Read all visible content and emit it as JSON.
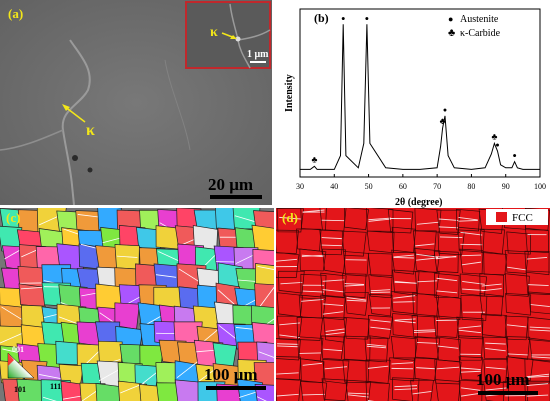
{
  "panels": {
    "a": {
      "label": "(a)",
      "arrow_label": "κ",
      "inset_arrow_label": "κ",
      "inset_scale": "1 μm",
      "scale": "20 μm"
    },
    "b": {
      "label": "(b)",
      "legend": [
        "Austenite",
        "κ-Carbide"
      ],
      "legend_symbols": [
        "●",
        "♣"
      ]
    },
    "c": {
      "label": "(c)",
      "scale": "100 μm",
      "ipf": {
        "top": "001",
        "left": "101",
        "right": "111"
      }
    },
    "d": {
      "label": "(d)",
      "legend_label": "FCC",
      "scale": "100 μm"
    }
  },
  "colors": {
    "sem_background": "#6f6f6f",
    "label_yellow": "#f2e61a",
    "inset_border": "#c0282c",
    "fcc_red": "#e3161a"
  },
  "chart_data": {
    "type": "line",
    "title": "",
    "xlabel": "2θ (degree)",
    "ylabel": "Intensity",
    "xlim": [
      30,
      100
    ],
    "xticks": [
      30,
      40,
      50,
      60,
      70,
      80,
      90,
      100
    ],
    "series": [
      {
        "name": "",
        "x": [
          30,
          33,
          34.2,
          35,
          40,
          41.8,
          42.6,
          43.4,
          47,
          48.6,
          49.5,
          50.4,
          55,
          60,
          65,
          70,
          71,
          71.6,
          72.3,
          73.2,
          75,
          80,
          84,
          85.8,
          86.7,
          87.6,
          88.5,
          90,
          91.8,
          92.6,
          93.4,
          95,
          100
        ],
        "y": [
          5,
          5,
          7,
          5,
          5,
          14,
          100,
          14,
          6,
          22,
          100,
          22,
          6,
          5,
          5,
          6,
          20,
          32,
          40,
          14,
          6,
          5,
          6,
          15,
          22,
          17,
          8,
          6,
          6,
          10,
          6,
          5,
          5
        ]
      }
    ],
    "markers": [
      {
        "symbol": "●",
        "phase": "Austenite",
        "x": 42.6,
        "y": 100
      },
      {
        "symbol": "●",
        "phase": "Austenite",
        "x": 49.5,
        "y": 100
      },
      {
        "symbol": "●",
        "phase": "Austenite",
        "x": 72.3,
        "y": 40
      },
      {
        "symbol": "●",
        "phase": "Austenite",
        "x": 87.6,
        "y": 17
      },
      {
        "symbol": "●",
        "phase": "Austenite",
        "x": 92.6,
        "y": 10
      },
      {
        "symbol": "♣",
        "phase": "κ-Carbide",
        "x": 34.2,
        "y": 7
      },
      {
        "symbol": "♣",
        "phase": "κ-Carbide",
        "x": 71.6,
        "y": 32
      },
      {
        "symbol": "♣",
        "phase": "κ-Carbide",
        "x": 86.7,
        "y": 22
      }
    ]
  }
}
